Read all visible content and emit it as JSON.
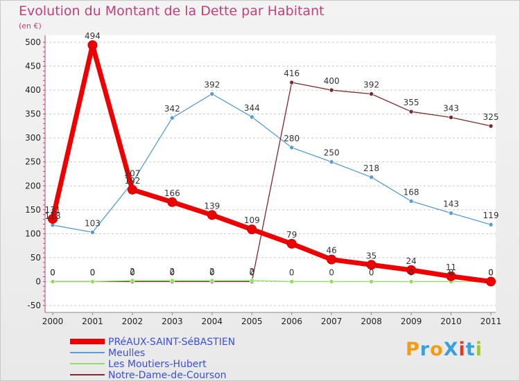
{
  "title": "Evolution du Montant de la Dette par Habitant",
  "unit": "(en €)",
  "logo": "ProXiti",
  "chart_data": {
    "type": "line",
    "title": "Evolution du Montant de la Dette par Habitant",
    "ylabel": "(en €)",
    "xlabel": "",
    "x": [
      "2000",
      "2001",
      "2002",
      "2003",
      "2004",
      "2005",
      "2006",
      "2007",
      "2008",
      "2009",
      "2010",
      "2011"
    ],
    "ylim": [
      -50,
      500
    ],
    "yticks": [
      -50,
      0,
      50,
      100,
      150,
      200,
      250,
      300,
      350,
      400,
      450,
      500
    ],
    "grid": "horizontal dashed",
    "legend_position": "bottom-left",
    "series": [
      {
        "name": "PRéAUX-SAINT-SéBASTIEN",
        "color": "#ee0000",
        "emphasis": true,
        "values": [
          131,
          494,
          192,
          166,
          139,
          109,
          79,
          46,
          35,
          24,
          11,
          0
        ],
        "labels": [
          "131",
          "494",
          "192",
          "166",
          "139",
          "109",
          "79",
          "46",
          "35",
          "24",
          "11",
          "0"
        ]
      },
      {
        "name": "Meulles",
        "color": "#5a9bd0",
        "values": [
          118,
          103,
          207,
          342,
          392,
          344,
          280,
          250,
          218,
          168,
          143,
          119
        ],
        "labels": [
          "118",
          "103",
          "207",
          "342",
          "392",
          "344",
          "280",
          "250",
          "218",
          "168",
          "143",
          "119"
        ]
      },
      {
        "name": "Les Moutiers-Hubert",
        "color": "#90dd60",
        "values": [
          0,
          0,
          2,
          2,
          2,
          2,
          0,
          0,
          0,
          0,
          0,
          0
        ],
        "labels": [
          "0",
          "0",
          "2",
          "2",
          "2",
          "2",
          "0",
          "0",
          "0",
          "0",
          "0",
          "0"
        ]
      },
      {
        "name": "Notre-Dame-de-Courson",
        "color": "#7a2a2a",
        "values": [
          0,
          0,
          0,
          0,
          0,
          0,
          416,
          400,
          392,
          355,
          343,
          325
        ],
        "labels": [
          "0",
          "0",
          "0",
          "0",
          "0",
          "0",
          "416",
          "400",
          "392",
          "355",
          "343",
          "325"
        ]
      }
    ]
  }
}
